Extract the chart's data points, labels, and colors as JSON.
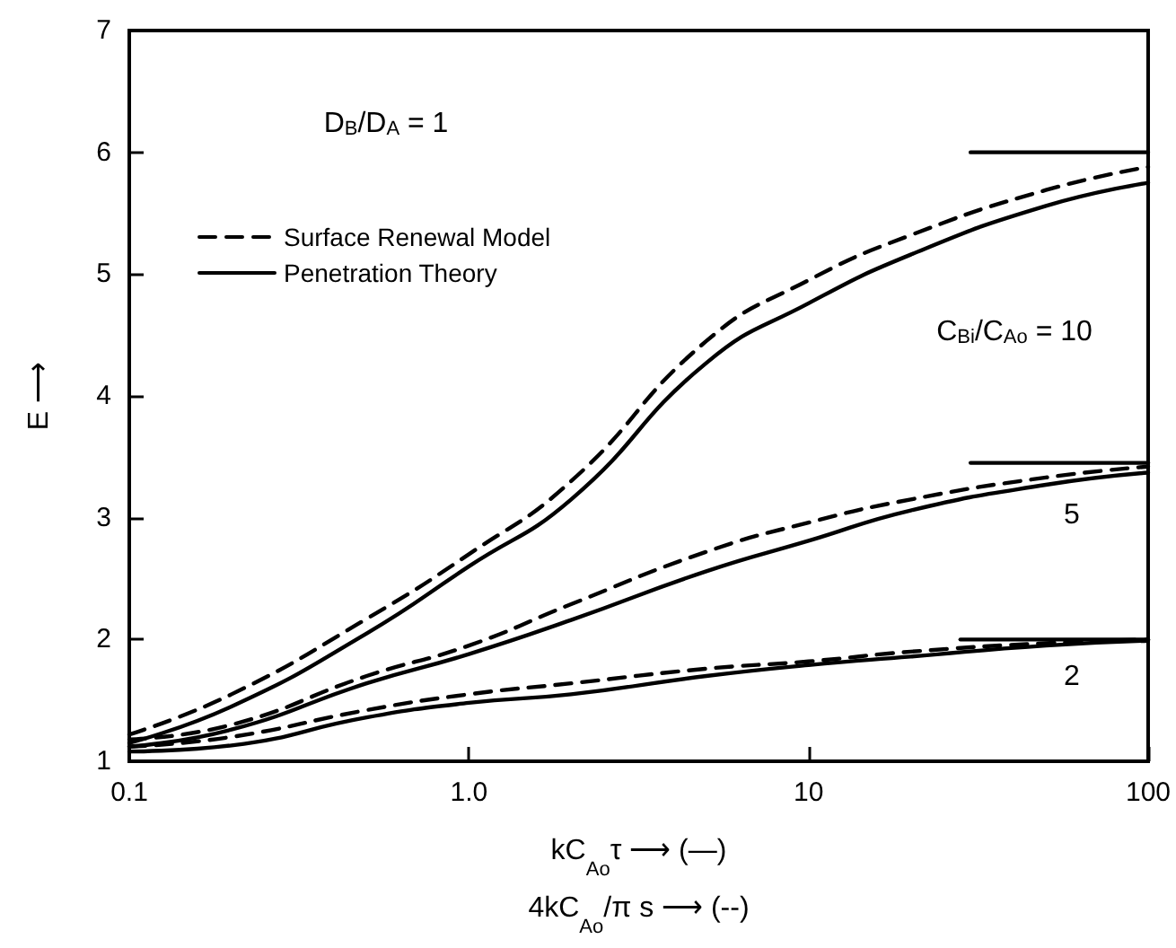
{
  "chart_data": {
    "type": "line",
    "xlabel": "kC$_{Ao}$τ ⟶ (—)\n4kC$_{Ao}$/π s ⟶ (--)",
    "ylabel": "E ⟶",
    "log": "x",
    "xlim": [
      0.1,
      100
    ],
    "xticks": [
      0.1,
      {
        "value": 1,
        "label": "1.0"
      },
      10,
      100
    ],
    "ylim": [
      1,
      7
    ],
    "yticks": [
      1,
      2,
      3,
      4,
      5,
      6,
      7
    ],
    "grid": false,
    "legend": "top left",
    "marker": "none",
    "x": [
      0.1,
      0.2,
      0.5,
      1,
      2,
      5,
      10,
      20,
      50,
      100
    ],
    "series": [
      {
        "name": "Surface Renewal Model",
        "color": "#000000",
        "line_style": "dashed",
        "values": [
          1.22,
          1.55,
          2.17,
          2.7,
          3.3,
          4.45,
          4.95,
          5.32,
          5.69,
          5.88
        ]
      },
      {
        "name": "Penetration Theory",
        "color": "#000000",
        "line_style": "solid",
        "values": [
          1.15,
          1.45,
          2.05,
          2.6,
          3.15,
          4.27,
          4.76,
          5.16,
          5.56,
          5.75
        ]
      },
      {
        "color": "#000000",
        "line_style": "dashed",
        "values": [
          1.18,
          1.3,
          1.7,
          1.95,
          2.29,
          2.72,
          2.96,
          3.15,
          3.33,
          3.42
        ]
      },
      {
        "color": "#000000",
        "line_style": "solid",
        "values": [
          1.12,
          1.26,
          1.64,
          1.88,
          2.16,
          2.56,
          2.81,
          3.06,
          3.27,
          3.37
        ]
      },
      {
        "color": "#000000",
        "line_style": "dashed",
        "values": [
          1.12,
          1.2,
          1.42,
          1.55,
          1.64,
          1.76,
          1.82,
          1.9,
          1.97,
          2.0
        ]
      },
      {
        "color": "#000000",
        "line_style": "solid",
        "values": [
          1.08,
          1.13,
          1.36,
          1.48,
          1.55,
          1.7,
          1.79,
          1.86,
          1.95,
          1.99
        ]
      },
      {
        "color": "#000000",
        "line_style": "solid",
        "x": [
          30,
          100
        ],
        "values": [
          6,
          6
        ]
      },
      {
        "color": "#000000",
        "line_style": "solid",
        "x": [
          30,
          100
        ],
        "values": [
          3.45,
          3.45
        ]
      },
      {
        "color": "#000000",
        "line_style": "solid",
        "x": [
          28,
          100
        ],
        "values": [
          2,
          2
        ]
      }
    ],
    "annotations": [
      "D$_{B}$/D$_{A}$ = 1",
      "C$_{Bi}$/C$_{Ao}$ = 10",
      "5",
      "2"
    ]
  }
}
